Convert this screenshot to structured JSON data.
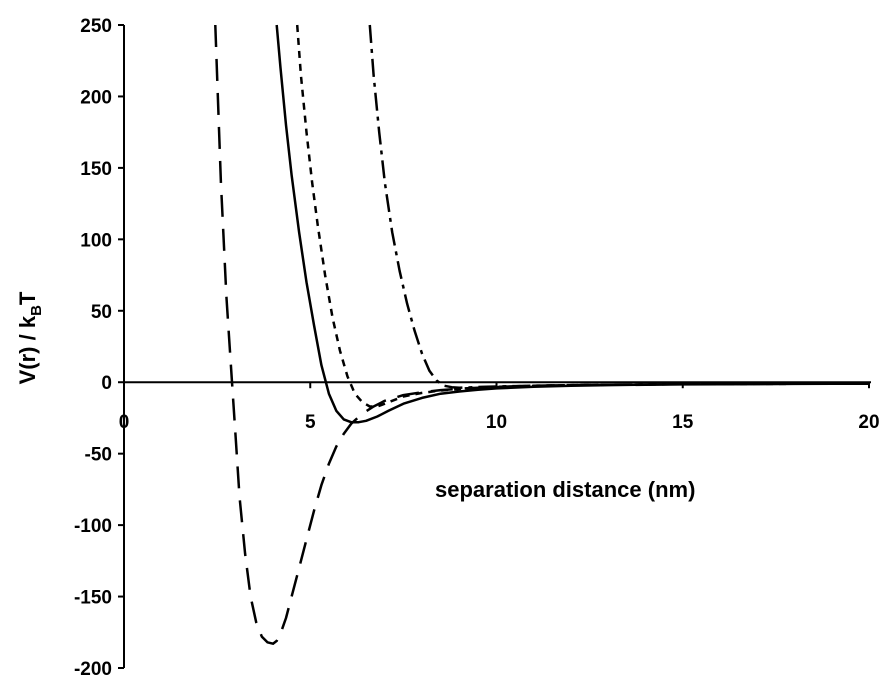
{
  "chart_data": {
    "type": "line",
    "title": "",
    "xlabel": "separation distance (nm)",
    "ylabel": {
      "prefix": "V(r)  / k",
      "subscript": "B",
      "suffix": "T"
    },
    "xlim": [
      0,
      20
    ],
    "ylim": [
      -200,
      250
    ],
    "xticks": [
      0,
      5,
      10,
      15,
      20
    ],
    "yticks": [
      250,
      200,
      150,
      100,
      50,
      0,
      -50,
      -100,
      -150,
      -200
    ],
    "grid": false,
    "legend": "none",
    "series": [
      {
        "style": "long-dash",
        "x": [
          2.45,
          2.6,
          2.75,
          2.9,
          3.0,
          3.1,
          3.25,
          3.4,
          3.55,
          3.7,
          3.85,
          4.0,
          4.1,
          4.2,
          4.35,
          4.5,
          4.7,
          4.9,
          5.1,
          5.3,
          5.5,
          5.7,
          5.9,
          6.1,
          6.4,
          6.7,
          7.0,
          7.5,
          8.0,
          8.5,
          9.0,
          9.5,
          10,
          11,
          12,
          13,
          14,
          15,
          16,
          17,
          18,
          19,
          20
        ],
        "y": [
          250,
          140,
          60,
          0,
          -40,
          -80,
          -120,
          -150,
          -168,
          -178,
          -182,
          -183,
          -181,
          -176,
          -165,
          -150,
          -130,
          -110,
          -90,
          -72,
          -57,
          -45,
          -36,
          -29,
          -22,
          -17,
          -13,
          -9,
          -7,
          -5.5,
          -4.5,
          -3.8,
          -3.2,
          -2.5,
          -2,
          -1.7,
          -1.5,
          -1.3,
          -1.2,
          -1.1,
          -1,
          -1,
          -1
        ]
      },
      {
        "style": "solid",
        "x": [
          4.1,
          4.2,
          4.35,
          4.5,
          4.7,
          4.9,
          5.1,
          5.3,
          5.5,
          5.7,
          5.9,
          6.1,
          6.3,
          6.5,
          6.8,
          7.1,
          7.5,
          8.0,
          8.5,
          9.0,
          9.5,
          10,
          11,
          12,
          13,
          14,
          15,
          16,
          17,
          18,
          19,
          20
        ],
        "y": [
          250,
          220,
          180,
          145,
          105,
          70,
          40,
          12,
          -8,
          -20,
          -26,
          -28,
          -28,
          -27,
          -24,
          -20,
          -15,
          -11,
          -8,
          -6.5,
          -5.2,
          -4.3,
          -3.1,
          -2.4,
          -2,
          -1.7,
          -1.5,
          -1.4,
          -1.3,
          -1.2,
          -1.1,
          -1
        ]
      },
      {
        "style": "short-dash",
        "x": [
          4.65,
          4.75,
          4.9,
          5.05,
          5.2,
          5.4,
          5.6,
          5.8,
          6.0,
          6.2,
          6.4,
          6.6,
          6.8,
          7.0,
          7.2,
          7.5,
          8.0,
          8.5,
          9.0,
          9.5,
          10,
          11,
          12,
          13,
          14,
          15,
          16,
          17,
          18,
          19,
          20
        ],
        "y": [
          250,
          215,
          175,
          140,
          110,
          75,
          45,
          22,
          4,
          -8,
          -14,
          -17,
          -17,
          -15,
          -13,
          -10,
          -7.5,
          -5.8,
          -4.8,
          -4,
          -3.4,
          -2.6,
          -2.1,
          -1.8,
          -1.6,
          -1.4,
          -1.3,
          -1.2,
          -1.1,
          -1,
          -1
        ]
      },
      {
        "style": "dash-dot",
        "x": [
          6.6,
          6.7,
          6.85,
          7.0,
          7.2,
          7.4,
          7.6,
          7.8,
          8.0,
          8.2,
          8.4,
          8.6,
          8.8,
          9.0,
          9.3,
          9.6,
          10,
          10.5,
          11,
          12,
          13,
          14,
          15,
          16,
          17,
          18,
          19,
          20
        ],
        "y": [
          250,
          215,
          175,
          140,
          105,
          78,
          55,
          36,
          20,
          8,
          1,
          -2.5,
          -3.5,
          -3.8,
          -3.6,
          -3.3,
          -3,
          -2.7,
          -2.4,
          -2,
          -1.7,
          -1.5,
          -1.3,
          -1.2,
          -1.1,
          -1,
          -1,
          -1
        ]
      }
    ]
  }
}
